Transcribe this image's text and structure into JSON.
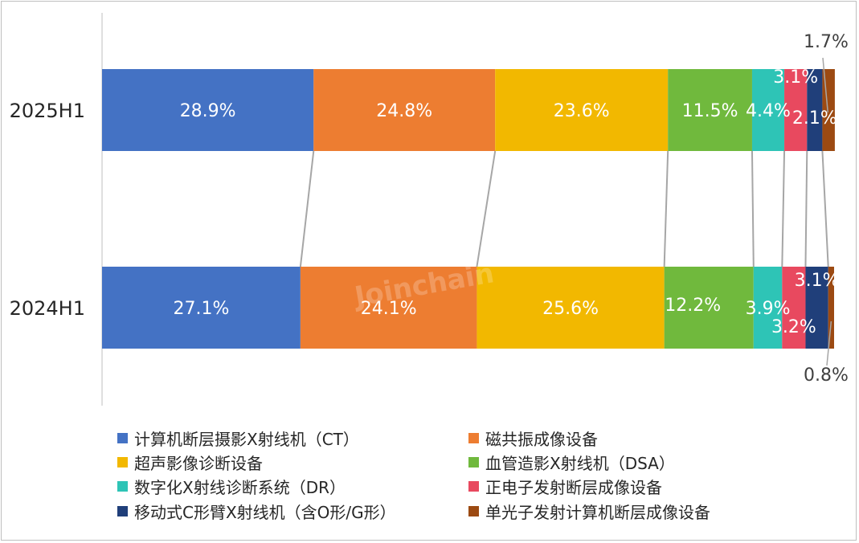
{
  "chart_data": {
    "type": "bar",
    "orientation": "horizontal",
    "stacked": true,
    "normalized": true,
    "categories": [
      "2025H1",
      "2024H1"
    ],
    "series": [
      {
        "name": "计算机断层摄影X射线机（CT）",
        "color": "#4472C4",
        "values": [
          28.9,
          27.1
        ],
        "labels": [
          "28.9%",
          "27.1%"
        ]
      },
      {
        "name": "磁共振成像设备",
        "color": "#ED7D31",
        "values": [
          24.8,
          24.1
        ],
        "labels": [
          "24.8%",
          "24.1%"
        ]
      },
      {
        "name": "超声影像诊断设备",
        "color": "#F2B800",
        "values": [
          23.6,
          25.6
        ],
        "labels": [
          "23.6%",
          "25.6%"
        ]
      },
      {
        "name": "血管造影X射线机（DSA）",
        "color": "#70B93D",
        "values": [
          11.5,
          12.2
        ],
        "labels": [
          "11.5%",
          "12.2%"
        ]
      },
      {
        "name": "数字化X射线诊断系统（DR）",
        "color": "#2EC4B6",
        "values": [
          4.4,
          3.9
        ],
        "labels": [
          "4.4%",
          "3.9%"
        ]
      },
      {
        "name": "正电子发射断层成像设备",
        "color": "#E8495F",
        "values": [
          3.1,
          3.2
        ],
        "labels": [
          "3.1%",
          "3.2%"
        ]
      },
      {
        "name": "移动式C形臂X射线机（含O形/G形）",
        "color": "#203F7A",
        "values": [
          2.1,
          3.1
        ],
        "labels": [
          "2.1%",
          "3.1%"
        ]
      },
      {
        "name": "单光子发射计算机断层成像设备",
        "color": "#9C4A12",
        "values": [
          1.7,
          0.8
        ],
        "labels": [
          "1.7%",
          "0.8%"
        ]
      }
    ],
    "xlim": [
      0,
      100
    ],
    "legend_position": "bottom",
    "watermark": "Joinchain"
  }
}
